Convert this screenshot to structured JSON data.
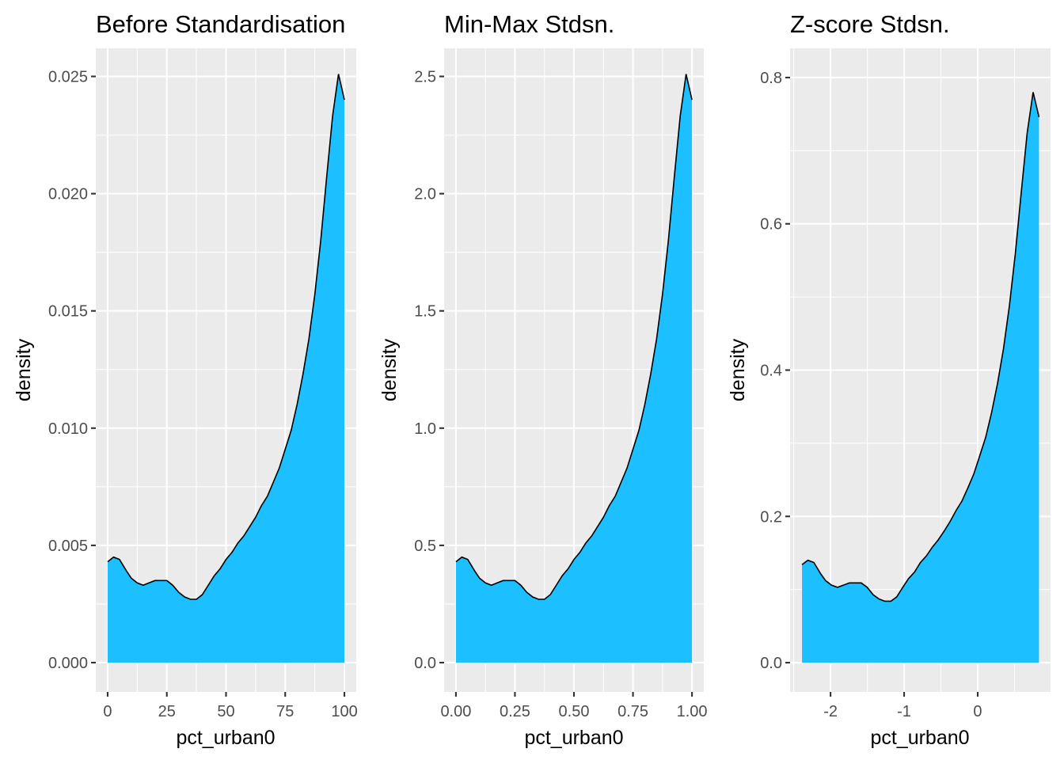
{
  "fill_color": "#1cbfff",
  "line_color": "#000000",
  "chart_data": [
    {
      "type": "area",
      "title": "Before Standardisation",
      "xlabel": "pct_urban0",
      "ylabel": "density",
      "xlim": [
        -5,
        105
      ],
      "ylim": [
        -0.00125,
        0.0262
      ],
      "x_ticks": [
        0,
        25,
        50,
        75,
        100
      ],
      "x_tick_labels": [
        "0",
        "25",
        "50",
        "75",
        "100"
      ],
      "y_ticks": [
        0,
        0.005,
        0.01,
        0.015,
        0.02,
        0.025
      ],
      "y_tick_labels": [
        "0.000",
        "0.005",
        "0.010",
        "0.015",
        "0.020",
        "0.025"
      ],
      "grid": true,
      "x": [
        0,
        2.5,
        5,
        8,
        10,
        12.5,
        15,
        17.5,
        20,
        22.5,
        25,
        27.5,
        30,
        32.5,
        35,
        37.5,
        40,
        42.5,
        45,
        47.5,
        50,
        52.5,
        55,
        57.5,
        60,
        62.5,
        65,
        67.5,
        70,
        72.5,
        75,
        77.5,
        80,
        82.5,
        85,
        87.5,
        90,
        92.5,
        95,
        97.5,
        100
      ],
      "y": [
        0.0043,
        0.0045,
        0.0044,
        0.0039,
        0.0036,
        0.0034,
        0.0033,
        0.0034,
        0.0035,
        0.0035,
        0.0035,
        0.0033,
        0.003,
        0.0028,
        0.0027,
        0.0027,
        0.0029,
        0.0033,
        0.0037,
        0.004,
        0.0044,
        0.0047,
        0.0051,
        0.0054,
        0.0058,
        0.0062,
        0.0067,
        0.0071,
        0.0077,
        0.0083,
        0.0091,
        0.0099,
        0.011,
        0.0123,
        0.0138,
        0.0157,
        0.018,
        0.0207,
        0.0233,
        0.0251,
        0.024
      ]
    },
    {
      "type": "area",
      "title": "Min-Max Stdsn.",
      "xlabel": "pct_urban0",
      "ylabel": "density",
      "xlim": [
        -0.05,
        1.05
      ],
      "ylim": [
        -0.125,
        2.62
      ],
      "x_ticks": [
        0,
        0.25,
        0.5,
        0.75,
        1
      ],
      "x_tick_labels": [
        "0.00",
        "0.25",
        "0.50",
        "0.75",
        "1.00"
      ],
      "y_ticks": [
        0,
        0.5,
        1,
        1.5,
        2,
        2.5
      ],
      "y_tick_labels": [
        "0.0",
        "0.5",
        "1.0",
        "1.5",
        "2.0",
        "2.5"
      ],
      "grid": true,
      "x": [
        0,
        0.025,
        0.05,
        0.08,
        0.1,
        0.125,
        0.15,
        0.175,
        0.2,
        0.225,
        0.25,
        0.275,
        0.3,
        0.325,
        0.35,
        0.375,
        0.4,
        0.425,
        0.45,
        0.475,
        0.5,
        0.525,
        0.55,
        0.575,
        0.6,
        0.625,
        0.65,
        0.675,
        0.7,
        0.725,
        0.75,
        0.775,
        0.8,
        0.825,
        0.85,
        0.875,
        0.9,
        0.925,
        0.95,
        0.975,
        1
      ],
      "y": [
        0.43,
        0.45,
        0.44,
        0.39,
        0.36,
        0.34,
        0.33,
        0.34,
        0.35,
        0.35,
        0.35,
        0.33,
        0.3,
        0.28,
        0.27,
        0.27,
        0.29,
        0.33,
        0.37,
        0.4,
        0.44,
        0.47,
        0.51,
        0.54,
        0.58,
        0.62,
        0.67,
        0.71,
        0.77,
        0.83,
        0.91,
        0.99,
        1.1,
        1.23,
        1.38,
        1.57,
        1.8,
        2.07,
        2.33,
        2.51,
        2.4
      ]
    },
    {
      "type": "area",
      "title": "Z-score Stdsn.",
      "xlabel": "pct_urban0",
      "ylabel": "density",
      "xlim": [
        -2.55,
        0.99
      ],
      "ylim": [
        -0.04,
        0.84
      ],
      "x_ticks": [
        -2,
        -1,
        0
      ],
      "x_tick_labels": [
        "-2",
        "-1",
        "0"
      ],
      "y_ticks": [
        0,
        0.2,
        0.4,
        0.6,
        0.8
      ],
      "y_tick_labels": [
        "0.0",
        "0.2",
        "0.4",
        "0.6",
        "0.8"
      ],
      "grid": true,
      "x": [
        -2.388,
        -2.308,
        -2.227,
        -2.131,
        -2.066,
        -1.986,
        -1.905,
        -1.825,
        -1.744,
        -1.664,
        -1.583,
        -1.502,
        -1.422,
        -1.341,
        -1.261,
        -1.18,
        -1.1,
        -1.019,
        -0.939,
        -0.858,
        -0.778,
        -0.697,
        -0.616,
        -0.536,
        -0.455,
        -0.375,
        -0.294,
        -0.214,
        -0.133,
        -0.053,
        0.028,
        0.108,
        0.189,
        0.27,
        0.35,
        0.431,
        0.511,
        0.592,
        0.672,
        0.753,
        0.833
      ],
      "y": [
        0.134,
        0.14,
        0.137,
        0.121,
        0.112,
        0.106,
        0.103,
        0.106,
        0.109,
        0.109,
        0.109,
        0.103,
        0.093,
        0.087,
        0.084,
        0.084,
        0.09,
        0.103,
        0.115,
        0.124,
        0.137,
        0.146,
        0.158,
        0.168,
        0.18,
        0.193,
        0.208,
        0.221,
        0.239,
        0.258,
        0.283,
        0.308,
        0.342,
        0.382,
        0.429,
        0.488,
        0.559,
        0.643,
        0.724,
        0.78,
        0.746
      ]
    }
  ]
}
